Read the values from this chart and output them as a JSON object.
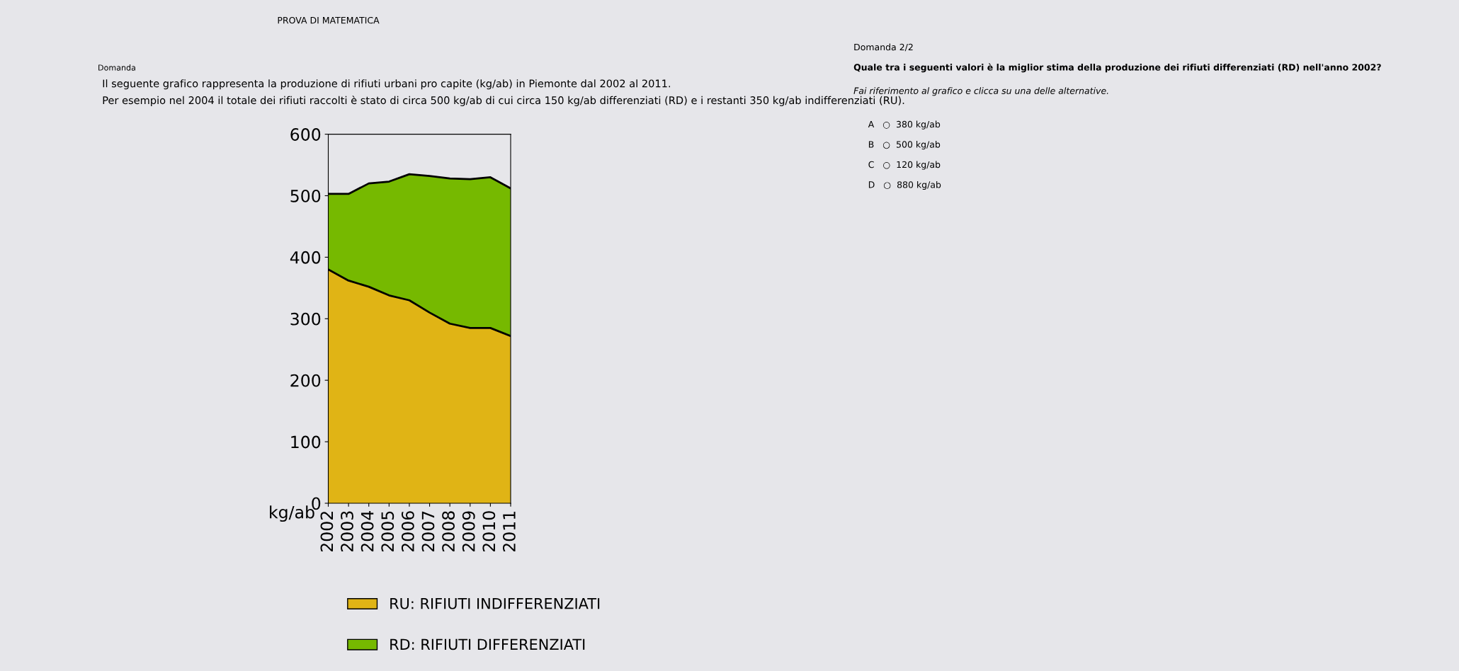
{
  "chart_data": {
    "type": "area",
    "stacked": true,
    "title": "Il seguente grafico rappresenta la produzione di rifiuti urbani pro capite (kg/ab) in Piemonte dal 2002 al 2011.",
    "subtitle": "Per esempio nel 2004 il totale dei rifiuti raccolti è stato di circa 500 kg/ab di cui circa 150 kg/ab differenziati (RD) e i restanti 350 kg/ab indifferenziati (RU).",
    "ylabel": "kg/ab",
    "categories": [
      "2002",
      "2003",
      "2004",
      "2005",
      "2006",
      "2007",
      "2008",
      "2009",
      "2010",
      "2011"
    ],
    "series": [
      {
        "name": "RU: RIFIUTI INDIFFERENZIATI",
        "color": "#e0b415",
        "values": [
          380,
          362,
          352,
          338,
          330,
          310,
          292,
          285,
          285,
          272
        ]
      },
      {
        "name": "RD: RIFIUTI DIFFERENZIATI",
        "color": "#76b900",
        "values": [
          123,
          141,
          168,
          185,
          205,
          222,
          236,
          242,
          245,
          240
        ]
      }
    ],
    "ylim": [
      0,
      600
    ],
    "yticks": [
      0,
      100,
      200,
      300,
      400,
      500,
      600
    ],
    "grid": false,
    "legend": "bottom",
    "annotations": [
      "PROVA DI MATEMATICA",
      "Domanda",
      "Domanda 2/2",
      "Quale tra i seguenti valori è la miglior stima della produzione dei rifiuti differenziati (RD) nell'anno 2002?",
      "Fai riferimento al grafico e clicca su una delle alternative.",
      "A   ○  380 kg/ab",
      "B   ○  500 kg/ab",
      "C   ○  120 kg/ab",
      "D   ○  880 kg/ab"
    ]
  }
}
